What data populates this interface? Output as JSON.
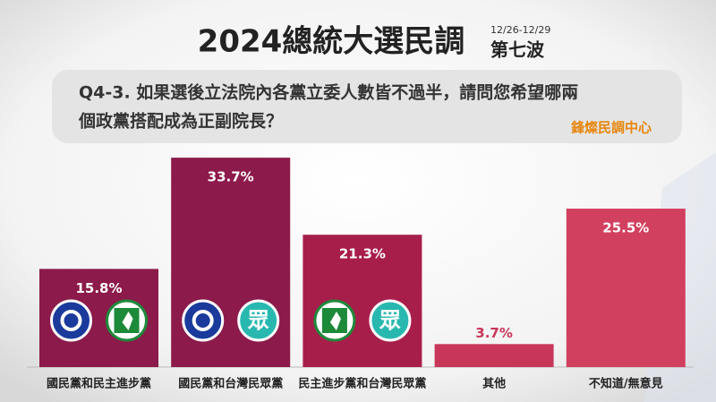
{
  "title": "2024總統大選民調",
  "date_range": "12/26-12/29",
  "wave": "第七波",
  "question": [
    "Q4-3. 如果選後立法院內各黨立委人數皆不過半，請問您希望哪兩",
    "個政黨搭配成為正副院長？"
  ],
  "source": "鋒燦民調中心",
  "tpp_logo_text": "眾",
  "chart_data": {
    "type": "bar",
    "categories": [
      "國民黨和民主進步黨",
      "國民黨和台灣民眾黨",
      "民主進步黨和台灣民眾黨",
      "其他",
      "不知道/無意見"
    ],
    "values": [
      15.8,
      33.7,
      21.3,
      3.7,
      25.5
    ],
    "value_labels": [
      "15.8%",
      "33.7%",
      "21.3%",
      "3.7%",
      "25.5%"
    ],
    "colors": [
      "#8c1a4a",
      "#8c1a4a",
      "#a81e4b",
      "#c8365a",
      "#d2405f"
    ]
  }
}
